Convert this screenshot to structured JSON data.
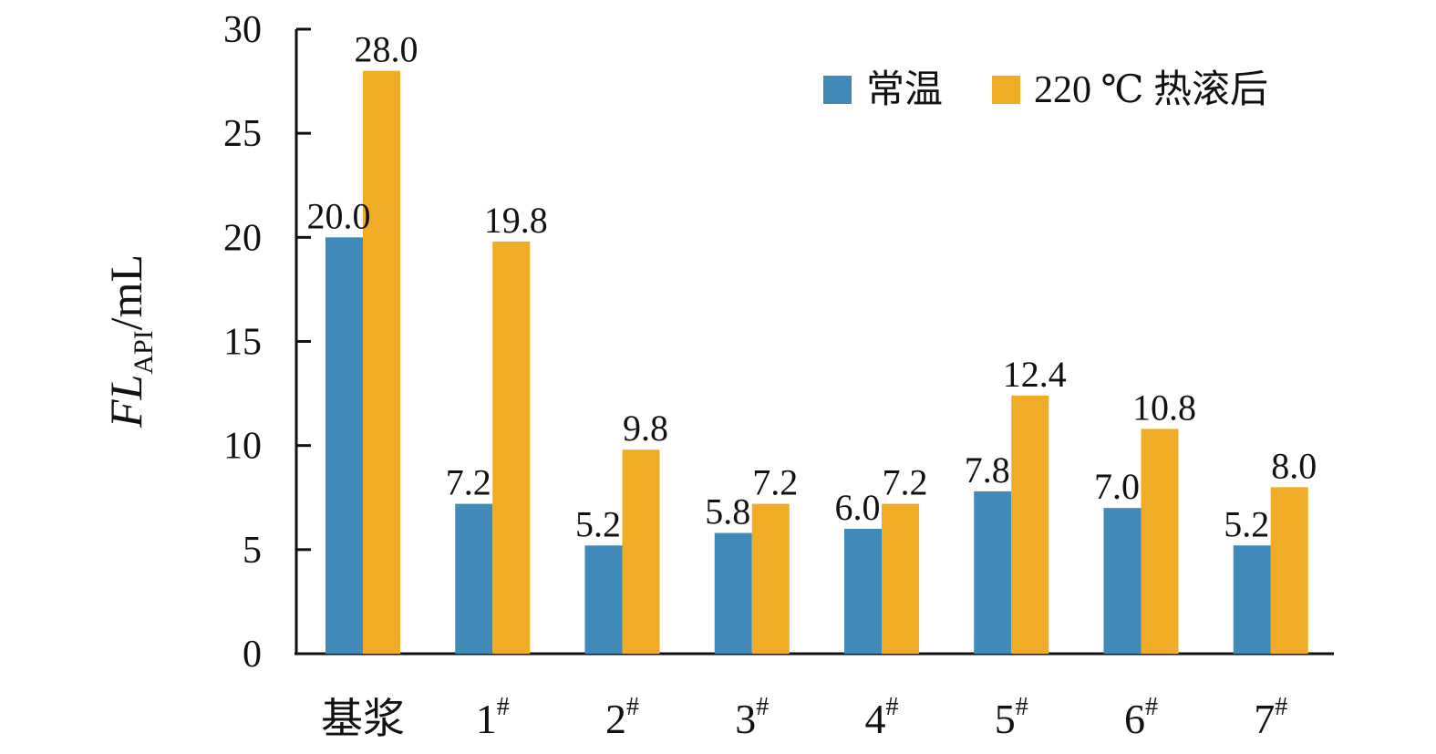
{
  "chart_data": {
    "type": "bar",
    "categories": [
      {
        "main": "基浆",
        "sup": ""
      },
      {
        "main": "1",
        "sup": "#"
      },
      {
        "main": "2",
        "sup": "#"
      },
      {
        "main": "3",
        "sup": "#"
      },
      {
        "main": "4",
        "sup": "#"
      },
      {
        "main": "5",
        "sup": "#"
      },
      {
        "main": "6",
        "sup": "#"
      },
      {
        "main": "7",
        "sup": "#"
      }
    ],
    "series": [
      {
        "name": "常温",
        "color": "#3f8ab8",
        "values": [
          20.0,
          7.2,
          5.2,
          5.8,
          6.0,
          7.8,
          7.0,
          5.2
        ],
        "labels": [
          "20.0",
          "7.2",
          "5.2",
          "5.8",
          "6.0",
          "7.8",
          "7.0",
          "5.2"
        ]
      },
      {
        "name": "220 ℃ 热滚后",
        "color": "#f0ac26",
        "values": [
          28.0,
          19.8,
          9.8,
          7.2,
          7.2,
          12.4,
          10.8,
          8.0
        ],
        "labels": [
          "28.0",
          "19.8",
          "9.8",
          "7.2",
          "7.2",
          "12.4",
          "10.8",
          "8.0"
        ]
      }
    ],
    "ylabel": {
      "main": "FL",
      "sub": "API",
      "unit": "/mL"
    },
    "yticks": [
      "0",
      "5",
      "10",
      "15",
      "20",
      "25",
      "30"
    ],
    "ylim": [
      0,
      30
    ],
    "grid": false,
    "legend_position": "top-right"
  }
}
